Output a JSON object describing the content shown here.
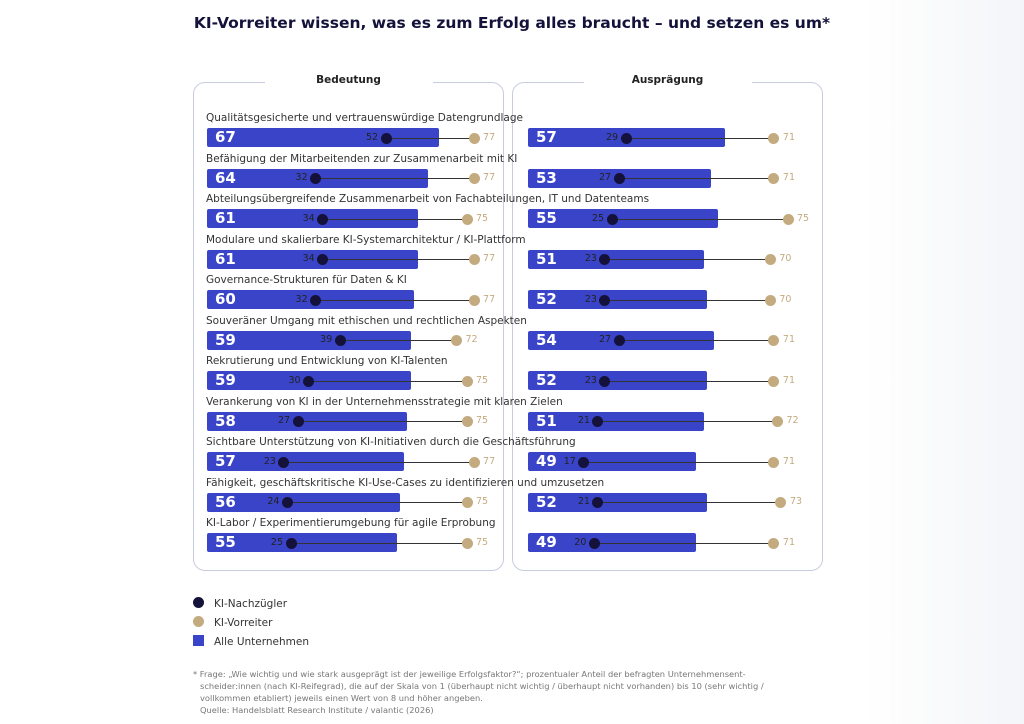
{
  "chart_data": {
    "type": "bar",
    "title": "KI-Vorreiter wissen, was es zum Erfolg alles braucht – und setzen es um*",
    "panels": [
      "Bedeutung",
      "Ausprägung"
    ],
    "categories": [
      "Qualitätsgesicherte und vertrauenswürdige Datengrundlage",
      "Befähigung der Mitarbeitenden zur Zusammenarbeit mit KI",
      "Abteilungsübergreifende Zusammenarbeit von Fachabteilungen, IT und Datenteams",
      "Modulare und skalierbare KI-Systemarchitektur / KI-Plattform",
      "Governance-Strukturen für Daten & KI",
      "Souveräner Umgang mit ethischen und rechtlichen Aspekten",
      "Rekrutierung und Entwicklung von KI-Talenten",
      "Verankerung von KI in der Unternehmensstrategie mit klaren Zielen",
      "Sichtbare Unterstützung von KI-Initiativen durch die Geschäftsführung",
      "Fähigkeit, geschäftskritische KI-Use-Cases zu identifizieren und umzusetzen",
      "KI-Labor / Experimentierumgebung für agile Erprobung"
    ],
    "series": [
      {
        "name": "Alle Unternehmen",
        "panel": "Bedeutung",
        "values": [
          67,
          64,
          61,
          61,
          60,
          59,
          59,
          58,
          57,
          56,
          55
        ]
      },
      {
        "name": "KI-Nachzügler",
        "panel": "Bedeutung",
        "values": [
          52,
          32,
          34,
          34,
          32,
          39,
          30,
          27,
          23,
          24,
          25
        ]
      },
      {
        "name": "KI-Vorreiter",
        "panel": "Bedeutung",
        "values": [
          77,
          77,
          75,
          77,
          77,
          72,
          75,
          75,
          77,
          75,
          75
        ]
      },
      {
        "name": "Alle Unternehmen",
        "panel": "Ausprägung",
        "values": [
          57,
          53,
          55,
          51,
          52,
          54,
          52,
          51,
          49,
          52,
          49
        ]
      },
      {
        "name": "KI-Nachzügler",
        "panel": "Ausprägung",
        "values": [
          29,
          27,
          25,
          23,
          23,
          27,
          23,
          21,
          17,
          21,
          20
        ]
      },
      {
        "name": "KI-Vorreiter",
        "panel": "Ausprägung",
        "values": [
          71,
          71,
          75,
          70,
          70,
          71,
          71,
          72,
          71,
          73,
          71
        ]
      }
    ],
    "xlim": [
      0,
      100
    ],
    "legend": [
      "KI-Nachzügler",
      "KI-Vorreiter",
      "Alle Unternehmen"
    ],
    "legend_position": "bottom-left"
  },
  "colors": {
    "all": "#3a44c8",
    "laggard": "#14123a",
    "leader": "#c4ab7f"
  },
  "footnote": [
    "* Frage: „Wie wichtig und wie stark ausgeprägt ist der jeweilige Erfolgsfaktor?“; prozentualer Anteil der befragten Unternehmensent-",
    "scheider:innen (nach KI-Reifegrad), die auf der Skala von 1 (überhaupt nicht wichtig / überhaupt nicht vorhanden) bis 10 (sehr wichtig /",
    "vollkommen etabliert) jeweils einen Wert von 8 und höher angeben.",
    "Quelle: Handelsblatt Research Institute / valantic (2026)"
  ]
}
